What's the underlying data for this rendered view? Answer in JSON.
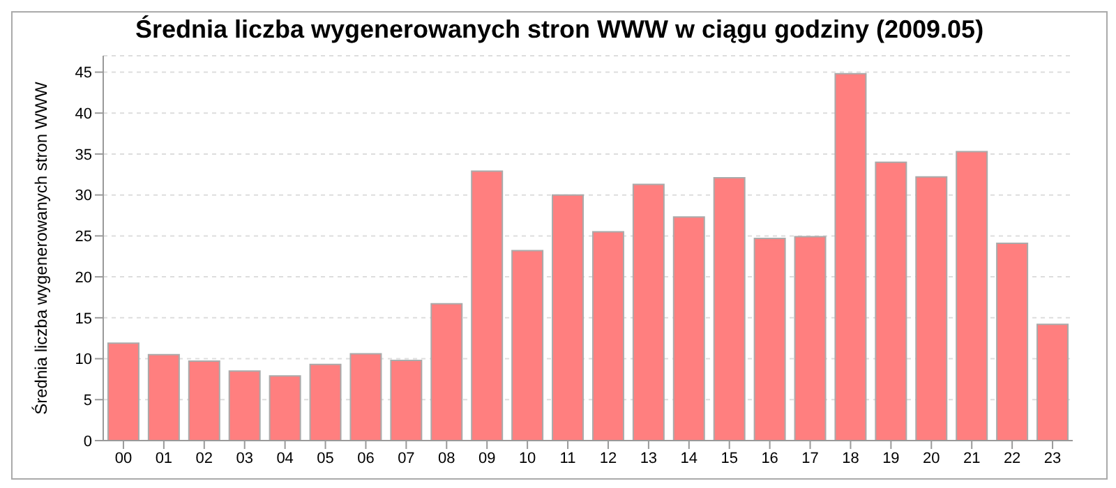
{
  "chart_data": {
    "type": "bar",
    "title": "Średnia liczba wygenerowanych stron WWW w ciągu godziny (2009.05)",
    "ylabel": "Średnia liczba wygenerowanych stron WWW",
    "categories": [
      "00",
      "01",
      "02",
      "03",
      "04",
      "05",
      "06",
      "07",
      "08",
      "09",
      "10",
      "11",
      "12",
      "13",
      "14",
      "15",
      "16",
      "17",
      "18",
      "19",
      "20",
      "21",
      "22",
      "23"
    ],
    "values": [
      11.9,
      10.5,
      9.7,
      8.5,
      7.9,
      9.3,
      10.6,
      9.8,
      16.7,
      32.9,
      23.2,
      30.0,
      25.5,
      31.3,
      27.3,
      32.1,
      24.7,
      24.9,
      44.8,
      34.0,
      32.2,
      35.3,
      24.1,
      14.2
    ],
    "color": "#ff7f7f",
    "ylim": [
      0,
      47
    ],
    "yticks": [
      0,
      5,
      10,
      15,
      20,
      25,
      30,
      35,
      40,
      45
    ],
    "grid": "y"
  }
}
